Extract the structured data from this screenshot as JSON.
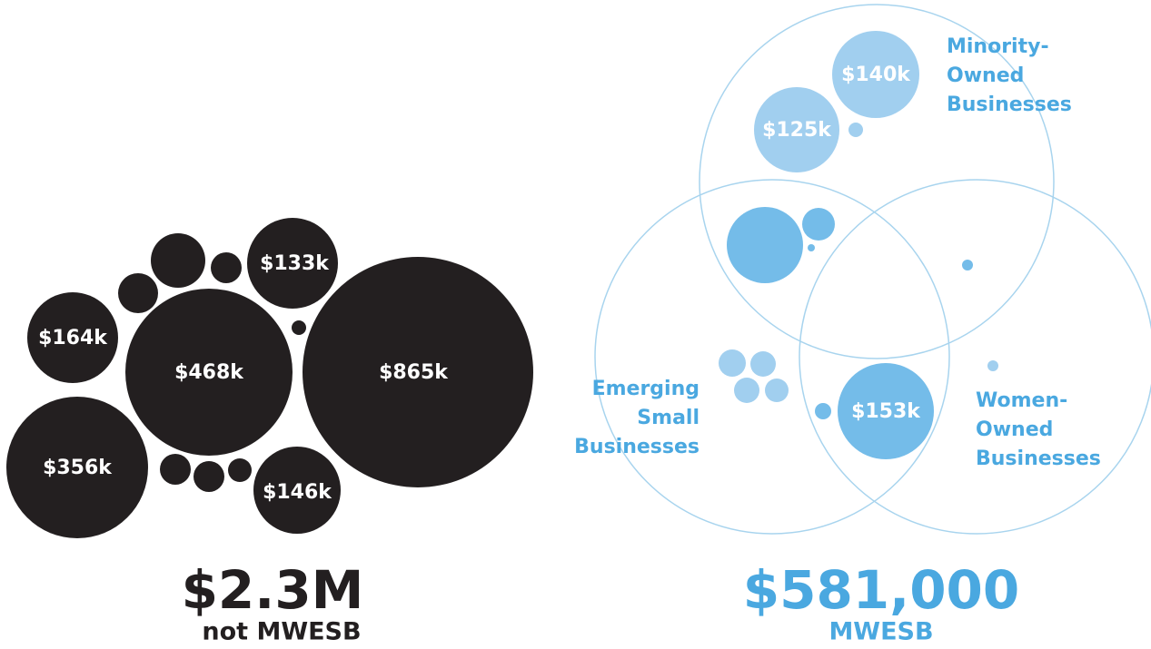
{
  "not_mwesb": {
    "bubbles": [
      "$164k",
      "$468k",
      "$865k",
      "$356k",
      "$133k",
      "$146k"
    ],
    "total": "$2.3M",
    "caption": "not MWESB"
  },
  "mwesb": {
    "bubbles": [
      "$140k",
      "$125k",
      "$153k"
    ],
    "sets": [
      [
        "Minority-",
        "Owned",
        "Businesses"
      ],
      [
        "Emerging",
        "Small",
        "Businesses"
      ],
      [
        "Women-",
        "Owned",
        "Businesses"
      ]
    ],
    "total": "$581,000",
    "caption": "MWESB"
  }
}
